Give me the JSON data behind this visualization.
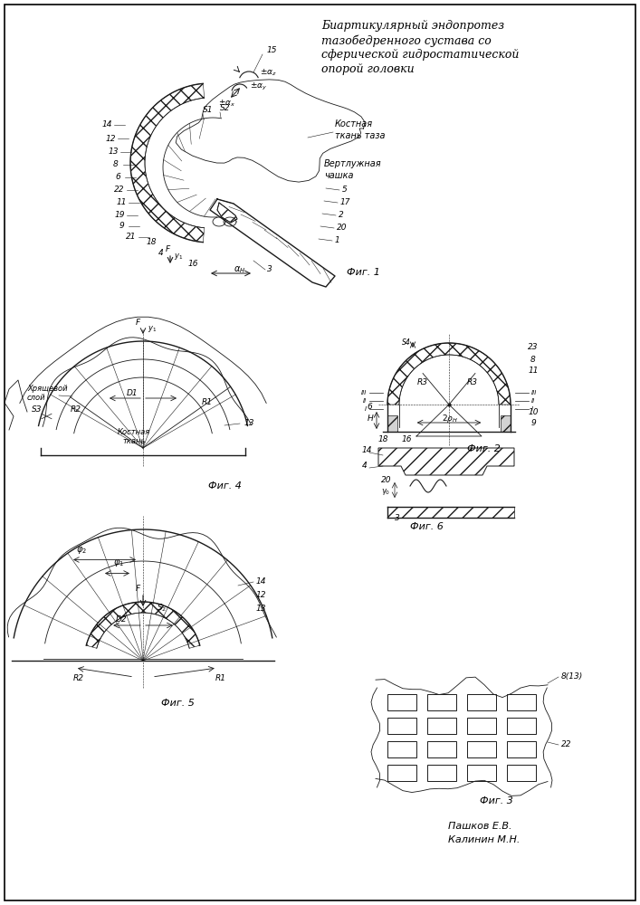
{
  "title_line1": "Биартикулярный эндопротез",
  "title_line2": "тазобедренного сустава со",
  "title_line3": "сферической гидростатической",
  "title_line4": "опорой головки",
  "authors_line1": "Пашков Е.В.",
  "authors_line2": "Калинин М.Н.",
  "bg_color": "#ffffff",
  "lc": "#1a1a1a",
  "fig1_label": "Фиг. 1",
  "fig2_label": "Фиг. 2",
  "fig3_label": "Фиг. 3",
  "fig4_label": "Фиг. 4",
  "fig5_label": "Фиг. 5",
  "fig6_label": "Фиг. 6"
}
